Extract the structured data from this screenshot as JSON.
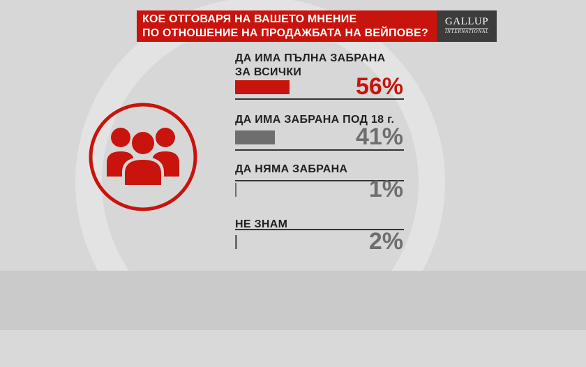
{
  "title": {
    "line1": "КОЕ ОТГОВАРЯ НА ВАШЕТО МНЕНИЕ",
    "line2": "ПО ОТНОШЕНИЕ НА ПРОДАЖБАТА НА ВЕЙПОВЕ?"
  },
  "logo": {
    "main": "GALLUP",
    "sub": "INTERNATIONAL"
  },
  "icon": "people-group-icon",
  "colors": {
    "accent": "#c8140d",
    "secondary": "#6e6e6e",
    "text": "#1f1f1f"
  },
  "chart_data": {
    "type": "bar",
    "orientation": "horizontal",
    "categories": [
      [
        "ДА ИМА ПЪЛНА ЗАБРАНА",
        "ЗА ВСИЧКИ"
      ],
      [
        "ДА ИМА ЗАБРАНА ПОД 18 г."
      ],
      [
        "ДА НЯМА ЗАБРАНА"
      ],
      [
        "НЕ ЗНАМ"
      ]
    ],
    "values": [
      56,
      41,
      1,
      2
    ],
    "value_labels": [
      "56%",
      "41%",
      "1%",
      "2%"
    ],
    "unit": "%",
    "bar_colors": [
      "#c8140d",
      "#6e6e6e",
      "#6e6e6e",
      "#6e6e6e"
    ],
    "label_colors": [
      "#c8140d",
      "#6e6e6e",
      "#6e6e6e",
      "#6e6e6e"
    ]
  }
}
